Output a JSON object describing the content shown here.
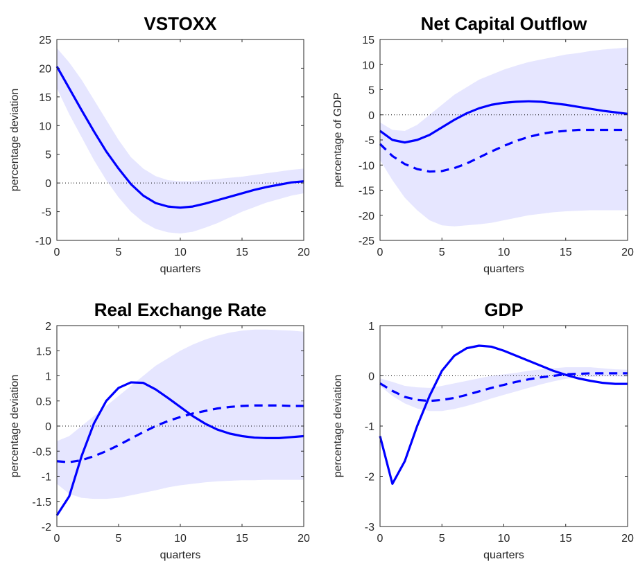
{
  "chart_data": [
    {
      "type": "line",
      "title": "VSTOXX",
      "xlabel": "quarters",
      "ylabel": "percentage deviation",
      "x": [
        0,
        1,
        2,
        3,
        4,
        5,
        6,
        7,
        8,
        9,
        10,
        11,
        12,
        13,
        14,
        15,
        16,
        17,
        18,
        19,
        20
      ],
      "xlim": [
        0,
        20
      ],
      "xticks": [
        0,
        5,
        10,
        15,
        20
      ],
      "ylim": [
        -10,
        25
      ],
      "yticks": [
        -10,
        -5,
        0,
        5,
        10,
        15,
        20,
        25
      ],
      "reference_line": 0,
      "band": {
        "color": "#e6e6ff",
        "upper": [
          23.5,
          21,
          18,
          14.5,
          11,
          7.5,
          4.5,
          2.5,
          1.2,
          0.5,
          0.3,
          0.3,
          0.5,
          0.7,
          0.9,
          1.1,
          1.4,
          1.7,
          2.0,
          2.3,
          2.5
        ],
        "lower": [
          16.5,
          12,
          8,
          4,
          0.5,
          -2.5,
          -5,
          -6.8,
          -8,
          -8.6,
          -8.8,
          -8.5,
          -7.8,
          -7,
          -6,
          -5,
          -4.2,
          -3.4,
          -2.8,
          -2.2,
          -1.8
        ]
      },
      "series": [
        {
          "color": "#0000ff",
          "dashed": false,
          "values": [
            20.3,
            16.5,
            12.7,
            9.0,
            5.5,
            2.5,
            -0.2,
            -2.2,
            -3.5,
            -4.1,
            -4.3,
            -4.1,
            -3.6,
            -3.0,
            -2.4,
            -1.8,
            -1.2,
            -0.7,
            -0.3,
            0.1,
            0.3
          ]
        }
      ]
    },
    {
      "type": "line",
      "title": "Net Capital Outflow",
      "xlabel": "quarters",
      "ylabel": "percentage of GDP",
      "x": [
        0,
        1,
        2,
        3,
        4,
        5,
        6,
        7,
        8,
        9,
        10,
        11,
        12,
        13,
        14,
        15,
        16,
        17,
        18,
        19,
        20
      ],
      "xlim": [
        0,
        20
      ],
      "xticks": [
        0,
        5,
        10,
        15,
        20
      ],
      "ylim": [
        -25,
        15
      ],
      "yticks": [
        -25,
        -20,
        -15,
        -10,
        -5,
        0,
        5,
        10,
        15
      ],
      "reference_line": 0,
      "band": {
        "color": "#e6e6ff",
        "upper": [
          -1.5,
          -3,
          -3.2,
          -2,
          0,
          2,
          4,
          5.5,
          7,
          8,
          9,
          9.8,
          10.5,
          11,
          11.5,
          12,
          12.3,
          12.7,
          13,
          13.2,
          13.4
        ],
        "lower": [
          -9,
          -13,
          -16.5,
          -19,
          -21,
          -22,
          -22.2,
          -22,
          -21.8,
          -21.5,
          -21,
          -20.5,
          -20,
          -19.7,
          -19.4,
          -19.2,
          -19.1,
          -19,
          -19,
          -19,
          -19
        ]
      },
      "series": [
        {
          "color": "#0000ff",
          "dashed": false,
          "values": [
            -3.2,
            -5,
            -5.5,
            -5,
            -4,
            -2.5,
            -1,
            0.3,
            1.3,
            2,
            2.4,
            2.6,
            2.7,
            2.6,
            2.3,
            2.0,
            1.6,
            1.2,
            0.8,
            0.5,
            0.2
          ]
        },
        {
          "color": "#0000ff",
          "dashed": true,
          "values": [
            -5.8,
            -8.2,
            -9.8,
            -10.8,
            -11.3,
            -11.2,
            -10.6,
            -9.7,
            -8.5,
            -7.3,
            -6.2,
            -5.2,
            -4.4,
            -3.8,
            -3.4,
            -3.2,
            -3.0,
            -3.0,
            -3.0,
            -3.0,
            -3.0
          ]
        }
      ]
    },
    {
      "type": "line",
      "title": "Real Exchange Rate",
      "xlabel": "quarters",
      "ylabel": "percentage deviation",
      "x": [
        0,
        1,
        2,
        3,
        4,
        5,
        6,
        7,
        8,
        9,
        10,
        11,
        12,
        13,
        14,
        15,
        16,
        17,
        18,
        19,
        20
      ],
      "xlim": [
        0,
        20
      ],
      "xticks": [
        0,
        5,
        10,
        15,
        20
      ],
      "ylim": [
        -2,
        2
      ],
      "yticks": [
        -2,
        -1.5,
        -1,
        -0.5,
        0,
        0.5,
        1,
        1.5,
        2
      ],
      "reference_line": 0,
      "band": {
        "color": "#e6e6ff",
        "upper": [
          -0.3,
          -0.2,
          0,
          0.2,
          0.4,
          0.6,
          0.8,
          1.0,
          1.2,
          1.35,
          1.5,
          1.62,
          1.72,
          1.8,
          1.86,
          1.9,
          1.92,
          1.92,
          1.91,
          1.9,
          1.88
        ],
        "lower": [
          -1.15,
          -1.35,
          -1.43,
          -1.45,
          -1.45,
          -1.43,
          -1.38,
          -1.33,
          -1.28,
          -1.22,
          -1.18,
          -1.15,
          -1.12,
          -1.1,
          -1.09,
          -1.08,
          -1.08,
          -1.07,
          -1.07,
          -1.07,
          -1.07
        ]
      },
      "series": [
        {
          "color": "#0000ff",
          "dashed": false,
          "values": [
            -1.78,
            -1.4,
            -0.6,
            0.05,
            0.5,
            0.76,
            0.87,
            0.86,
            0.73,
            0.56,
            0.38,
            0.2,
            0.05,
            -0.07,
            -0.15,
            -0.2,
            -0.23,
            -0.24,
            -0.24,
            -0.22,
            -0.2
          ]
        },
        {
          "color": "#0000ff",
          "dashed": true,
          "values": [
            -0.7,
            -0.72,
            -0.68,
            -0.6,
            -0.5,
            -0.38,
            -0.25,
            -0.12,
            0,
            0.1,
            0.18,
            0.25,
            0.3,
            0.35,
            0.38,
            0.4,
            0.41,
            0.41,
            0.41,
            0.4,
            0.4
          ]
        }
      ]
    },
    {
      "type": "line",
      "title": "GDP",
      "xlabel": "quarters",
      "ylabel": "percentage deviation",
      "x": [
        0,
        1,
        2,
        3,
        4,
        5,
        6,
        7,
        8,
        9,
        10,
        11,
        12,
        13,
        14,
        15,
        16,
        17,
        18,
        19,
        20
      ],
      "xlim": [
        0,
        20
      ],
      "xticks": [
        0,
        5,
        10,
        15,
        20
      ],
      "ylim": [
        -3,
        1
      ],
      "yticks": [
        -3,
        -2,
        -1,
        0,
        1
      ],
      "reference_line": 0,
      "band": {
        "color": "#e6e6ff",
        "upper": [
          -0.05,
          -0.12,
          -0.2,
          -0.23,
          -0.24,
          -0.2,
          -0.15,
          -0.1,
          -0.05,
          0,
          0.03,
          0.06,
          0.1,
          0.13,
          0.15,
          0.17,
          0.17,
          0.17,
          0.15,
          0.13,
          0.12
        ],
        "lower": [
          -0.2,
          -0.4,
          -0.55,
          -0.65,
          -0.7,
          -0.7,
          -0.66,
          -0.6,
          -0.53,
          -0.45,
          -0.38,
          -0.31,
          -0.24,
          -0.17,
          -0.11,
          -0.06,
          -0.03,
          -0.02,
          -0.01,
          -0.01,
          -0.02
        ]
      },
      "series": [
        {
          "color": "#0000ff",
          "dashed": false,
          "values": [
            -1.2,
            -2.15,
            -1.7,
            -1.0,
            -0.4,
            0.1,
            0.4,
            0.55,
            0.6,
            0.58,
            0.5,
            0.4,
            0.3,
            0.2,
            0.1,
            0.02,
            -0.05,
            -0.1,
            -0.14,
            -0.16,
            -0.16
          ]
        },
        {
          "color": "#0000ff",
          "dashed": true,
          "values": [
            -0.15,
            -0.3,
            -0.42,
            -0.48,
            -0.5,
            -0.48,
            -0.44,
            -0.38,
            -0.31,
            -0.24,
            -0.18,
            -0.12,
            -0.07,
            -0.03,
            0,
            0.03,
            0.04,
            0.05,
            0.05,
            0.05,
            0.05
          ]
        }
      ]
    }
  ]
}
